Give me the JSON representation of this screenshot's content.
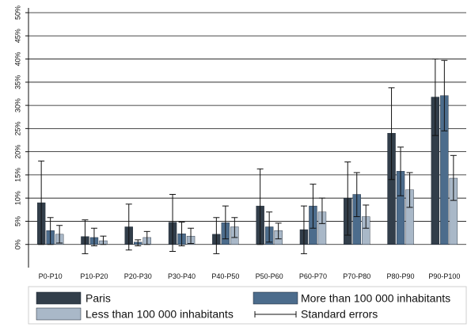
{
  "chart_data": {
    "type": "bar",
    "categories": [
      "P0-P10",
      "P10-P20",
      "P20-P30",
      "P30-P40",
      "P40-P50",
      "P50-P60",
      "P60-P70",
      "P70-P80",
      "P80-P90",
      "P90-P100"
    ],
    "ylim": [
      -5,
      50
    ],
    "yticks": [
      0,
      5,
      10,
      15,
      20,
      25,
      30,
      35,
      40,
      45,
      50
    ],
    "ytick_labels": [
      "0%",
      "5%",
      "10%",
      "15%",
      "20%",
      "25%",
      "30%",
      "35%",
      "40%",
      "45%",
      "50%"
    ],
    "grid": true,
    "legend_position": "bottom",
    "series": [
      {
        "name": "Paris",
        "color": "#323e4a",
        "values": [
          9.0,
          1.7,
          3.8,
          4.8,
          2.2,
          8.3,
          3.2,
          10.0,
          24.0,
          31.8
        ],
        "err_low": [
          0.0,
          -2.0,
          -1.2,
          -1.5,
          -2.0,
          0.0,
          -2.0,
          2.0,
          14.0,
          23.5
        ],
        "err_high": [
          18.0,
          5.3,
          8.7,
          10.8,
          5.8,
          16.3,
          8.3,
          17.8,
          33.8,
          40.0
        ]
      },
      {
        "name": "More than 100 000 inhabitants",
        "color": "#4c6c8c",
        "values": [
          3.0,
          1.5,
          0.5,
          2.3,
          4.7,
          3.8,
          8.3,
          10.8,
          15.8,
          32.1
        ],
        "err_low": [
          0.0,
          -0.3,
          -0.3,
          -0.3,
          1.2,
          0.5,
          3.5,
          6.0,
          10.5,
          24.5
        ],
        "err_high": [
          5.8,
          3.5,
          1.0,
          4.8,
          8.3,
          7.0,
          13.0,
          15.5,
          21.0,
          39.7
        ]
      },
      {
        "name": "Less than 100 000 inhabitants",
        "color": "#a9b8c8",
        "values": [
          2.2,
          0.8,
          1.5,
          1.8,
          3.8,
          3.0,
          7.0,
          6.0,
          11.8,
          14.3
        ],
        "err_low": [
          0.3,
          0.0,
          0.0,
          0.2,
          1.5,
          1.2,
          4.5,
          3.5,
          8.0,
          9.5
        ],
        "err_high": [
          4.1,
          1.8,
          2.8,
          3.5,
          5.8,
          4.6,
          10.0,
          8.5,
          15.5,
          19.2
        ]
      }
    ],
    "legend": {
      "entries": [
        "Paris",
        "More than 100 000 inhabitants",
        "Less than 100 000 inhabitants",
        "Standard errors"
      ]
    }
  }
}
